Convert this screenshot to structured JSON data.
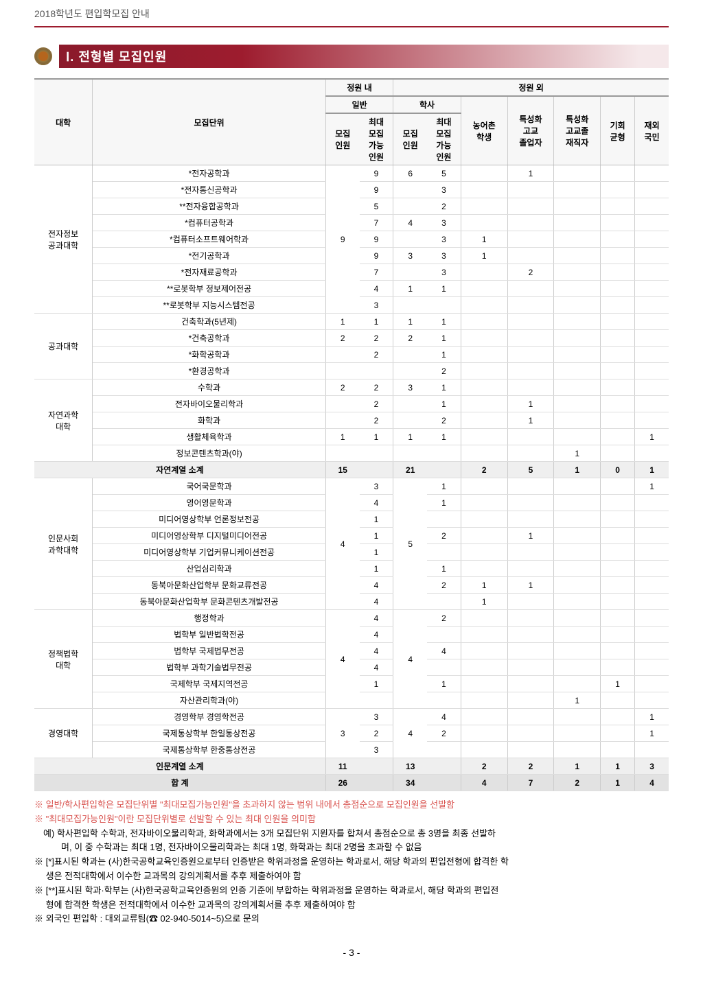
{
  "header": {
    "title": "2018학년도 편입학모집 안내"
  },
  "section": {
    "number": "Ⅰ.",
    "title": "전형별 모집인원"
  },
  "thead": {
    "college": "대학",
    "unit": "모집단위",
    "inside": "정원 내",
    "outside": "정원 외",
    "general": "일반",
    "bachelor": "학사",
    "recruit": "모집\n인원",
    "maxRecruit": "최대\n모집\n가능\n인원",
    "rural": "농어촌\n학생",
    "specHS": "특성화\n고교\n졸업자",
    "specHSWork": "특성화\n고교졸\n재직자",
    "opportunity": "기회\n균형",
    "overseas": "재외\n국민"
  },
  "colleges": [
    {
      "name": "전자정보\n공과대학",
      "genRecruit": "9",
      "rows": [
        {
          "dept": "*전자공학과",
          "genMax": "9",
          "baRecruit": "6",
          "baMax": "5",
          "specHS": "1"
        },
        {
          "dept": "*전자통신공학과",
          "genMax": "9",
          "baMax": "3"
        },
        {
          "dept": "**전자융합공학과",
          "genMax": "5",
          "baMax": "2"
        },
        {
          "dept": "*컴퓨터공학과",
          "genMax": "7",
          "baRecruit": "4",
          "baMax": "3"
        },
        {
          "dept": "*컴퓨터소프트웨어학과",
          "genMax": "9",
          "baMax": "3",
          "rural": "1"
        },
        {
          "dept": "*전기공학과",
          "genMax": "9",
          "baRecruit": "3",
          "baMax": "3",
          "rural": "1"
        },
        {
          "dept": "*전자재료공학과",
          "genMax": "7",
          "baMax": "3",
          "specHS": "2"
        },
        {
          "dept": "**로봇학부 정보제어전공",
          "genMax": "4",
          "baRecruit": "1",
          "baMax": "1"
        },
        {
          "dept": "**로봇학부 지능시스템전공",
          "genMax": "3"
        }
      ]
    },
    {
      "name": "공과대학",
      "rows": [
        {
          "dept": "건축학과(5년제)",
          "genRecruit": "1",
          "genMax": "1",
          "baRecruit": "1",
          "baMax": "1"
        },
        {
          "dept": "*건축공학과",
          "genRecruit": "2",
          "genMax": "2",
          "baRecruit": "2",
          "baMax": "1"
        },
        {
          "dept": "*화학공학과",
          "genMax": "2",
          "baMax": "1"
        },
        {
          "dept": "*환경공학과",
          "baMax": "2"
        }
      ]
    },
    {
      "name": "자연과학\n대학",
      "rows": [
        {
          "dept": "수학과",
          "genRecruit": "2",
          "genMax": "2",
          "baRecruit": "3",
          "baMax": "1"
        },
        {
          "dept": "전자바이오물리학과",
          "genMax": "2",
          "baMax": "1",
          "specHS": "1"
        },
        {
          "dept": "화학과",
          "genMax": "2",
          "baMax": "2",
          "specHS": "1"
        },
        {
          "dept": "생활체육학과",
          "genRecruit": "1",
          "genMax": "1",
          "baRecruit": "1",
          "baMax": "1",
          "overseas": "1"
        },
        {
          "dept": "정보콘텐츠학과(야)",
          "specHSWork": "1"
        }
      ]
    }
  ],
  "subtotal1": {
    "label": "자연계열 소계",
    "genRecruit": "15",
    "baRecruit": "21",
    "rural": "2",
    "specHS": "5",
    "specHSWork": "1",
    "opportunity": "0",
    "overseas": "1"
  },
  "colleges2": [
    {
      "name": "인문사회\n과학대학",
      "genRecruit": "4",
      "baRecruit": "5",
      "rows": [
        {
          "dept": "국어국문학과",
          "genMax": "3",
          "baMax": "1",
          "overseas": "1"
        },
        {
          "dept": "영어영문학과",
          "genMax": "4",
          "baMax": "1"
        },
        {
          "dept": "미디어영상학부 언론정보전공",
          "genMax": "1"
        },
        {
          "dept": "미디어영상학부 디지털미디어전공",
          "genMax": "1",
          "baMax": "2",
          "specHS": "1"
        },
        {
          "dept": "미디어영상학부 기업커뮤니케이션전공",
          "genMax": "1"
        },
        {
          "dept": "산업심리학과",
          "genMax": "1",
          "baMax": "1"
        },
        {
          "dept": "동북아문화산업학부 문화교류전공",
          "genMax": "4",
          "baMax": "2",
          "rural": "1",
          "specHS": "1"
        },
        {
          "dept": "동북아문화산업학부 문화콘텐츠개발전공",
          "genMax": "4",
          "rural": "1"
        }
      ]
    },
    {
      "name": "정책법학\n대학",
      "genRecruit": "4",
      "baRecruit": "4",
      "rows": [
        {
          "dept": "행정학과",
          "genMax": "4",
          "baMax": "2"
        },
        {
          "dept": "법학부 일반법학전공",
          "genMax": "4"
        },
        {
          "dept": "법학부 국제법무전공",
          "genMax": "4",
          "baMax": "4"
        },
        {
          "dept": "법학부 과학기술법무전공",
          "genMax": "4"
        },
        {
          "dept": "국제학부 국제지역전공",
          "genMax": "1",
          "baMax": "1",
          "opportunity": "1"
        },
        {
          "dept": "자산관리학과(야)",
          "specHSWork": "1"
        }
      ]
    },
    {
      "name": "경영대학",
      "genRecruit": "3",
      "baRecruit": "4",
      "rows": [
        {
          "dept": "경영학부 경영학전공",
          "genMax": "3",
          "baMax": "4",
          "overseas": "1"
        },
        {
          "dept": "국제통상학부 한일통상전공",
          "genMax": "2",
          "baMax": "2",
          "overseas": "1"
        },
        {
          "dept": "국제통상학부 한중통상전공",
          "genMax": "3"
        }
      ]
    }
  ],
  "subtotal2": {
    "label": "인문계열 소계",
    "genRecruit": "11",
    "baRecruit": "13",
    "rural": "2",
    "specHS": "2",
    "specHSWork": "1",
    "opportunity": "1",
    "overseas": "3"
  },
  "grandtotal": {
    "label": "합 계",
    "genRecruit": "26",
    "baRecruit": "34",
    "rural": "4",
    "specHS": "7",
    "specHSWork": "2",
    "opportunity": "1",
    "overseas": "4"
  },
  "notes": {
    "n1": "※ 일반/학사편입학은 모집단위별 \"최대모집가능인원\"을 초과하지 않는 범위 내에서 총점순으로 모집인원을 선발함",
    "n2": "※ \"최대모집가능인원\"이란 모집단위별로 선발할 수 있는 최대 인원을 의미함",
    "n2ex1": "　예) 학사편입학 수학과, 전자바이오물리학과, 화학과에서는 3개 모집단위 지원자를 합쳐서 총점순으로 총 3명을 최종 선발하",
    "n2ex2": "　　　며, 이 중 수학과는 최대 1명, 전자바이오물리학과는 최대 1명, 화학과는 최대 2명을 초과할 수 없음",
    "n3a": "※ [*]표시된 학과는 (사)한국공학교육인증원으로부터 인증받은 학위과정을 운영하는 학과로서, 해당 학과의 편입전형에 합격한 학",
    "n3b": "　 생은 전적대학에서 이수한 교과목의 강의계획서를 추후 제출하여야 함",
    "n4a": "※ [**]표시된 학과·학부는 (사)한국공학교육인증원의 인증 기준에 부합하는 학위과정을 운영하는 학과로서, 해당 학과의 편입전",
    "n4b": "　 형에 합격한 학생은 전적대학에서 이수한 교과목의 강의계획서를 추후 제출하여야 함",
    "n5": "※ 외국인 편입학 : 대외교류팀(☎ 02-940-5014~5)으로 문의"
  },
  "pageNo": "- 3 -"
}
